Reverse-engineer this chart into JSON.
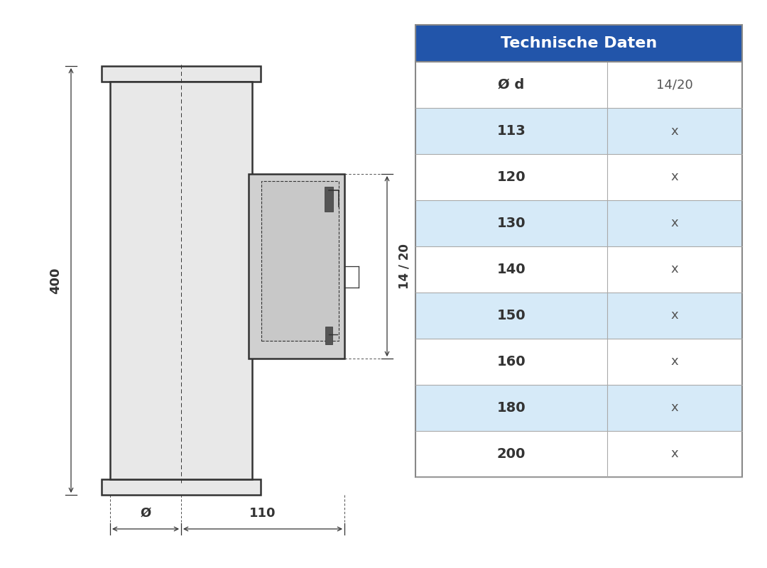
{
  "title": "Technische Daten",
  "title_bg": "#2255aa",
  "title_color": "#ffffff",
  "header_row": [
    "Ø d",
    "14/20"
  ],
  "rows": [
    [
      "113",
      "x"
    ],
    [
      "120",
      "x"
    ],
    [
      "130",
      "x"
    ],
    [
      "140",
      "x"
    ],
    [
      "150",
      "x"
    ],
    [
      "160",
      "x"
    ],
    [
      "180",
      "x"
    ],
    [
      "200",
      "x"
    ]
  ],
  "row_colors_alt": [
    "#d6eaf8",
    "#ffffff"
  ],
  "table_border": "#555555",
  "dim_400": "400",
  "dim_110": "110",
  "dim_phi": "Ø",
  "dim_14_20": "14 / 20",
  "bg_color": "#ffffff",
  "drawing_fill": "#e8e8e8",
  "drawing_line": "#333333"
}
